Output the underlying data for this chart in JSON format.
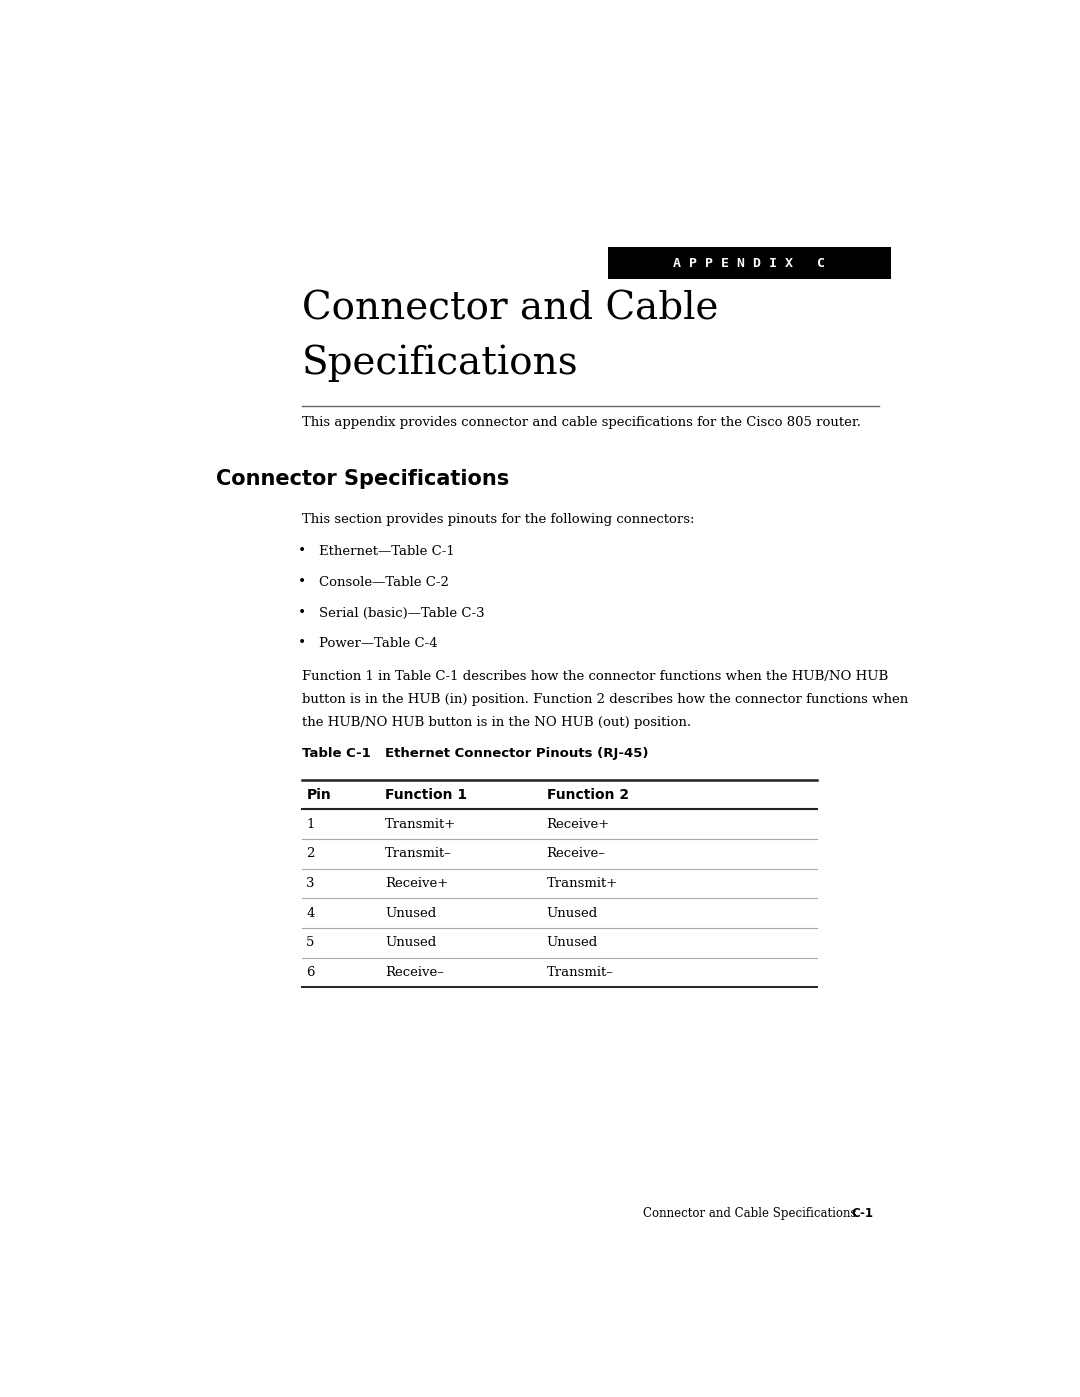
{
  "appendix_label": "A P P E N D I X   C",
  "chapter_title_line1": "Connector and Cable",
  "chapter_title_line2": "Specifications",
  "chapter_intro": "This appendix provides connector and cable specifications for the Cisco 805 router.",
  "section_heading": "Connector Specifications",
  "section_intro": "This section provides pinouts for the following connectors:",
  "bullets": [
    "Ethernet—Table C-1",
    "Console—Table C-2",
    "Serial (basic)—Table C-3",
    "Power—Table C-4"
  ],
  "para_lines": [
    "Function 1 in Table C-1 describes how the connector functions when the HUB/NO HUB",
    "button is in the HUB (in) position. Function 2 describes how the connector functions when",
    "the HUB/NO HUB button is in the NO HUB (out) position."
  ],
  "table_label": "Table C-1",
  "table_title": "Ethernet Connector Pinouts (RJ-45)",
  "table_headers": [
    "Pin",
    "Function 1",
    "Function 2"
  ],
  "table_rows": [
    [
      "1",
      "Transmit+",
      "Receive+"
    ],
    [
      "2",
      "Transmit–",
      "Receive–"
    ],
    [
      "3",
      "Receive+",
      "Transmit+"
    ],
    [
      "4",
      "Unused",
      "Unused"
    ],
    [
      "5",
      "Unused",
      "Unused"
    ],
    [
      "6",
      "Receive–",
      "Transmit–"
    ]
  ],
  "footer_text": "Connector and Cable Specifications",
  "footer_page": "C-1",
  "bg_color": "#ffffff",
  "text_color": "#000000",
  "appendix_bg": "#000000",
  "appendix_fg": "#ffffff"
}
